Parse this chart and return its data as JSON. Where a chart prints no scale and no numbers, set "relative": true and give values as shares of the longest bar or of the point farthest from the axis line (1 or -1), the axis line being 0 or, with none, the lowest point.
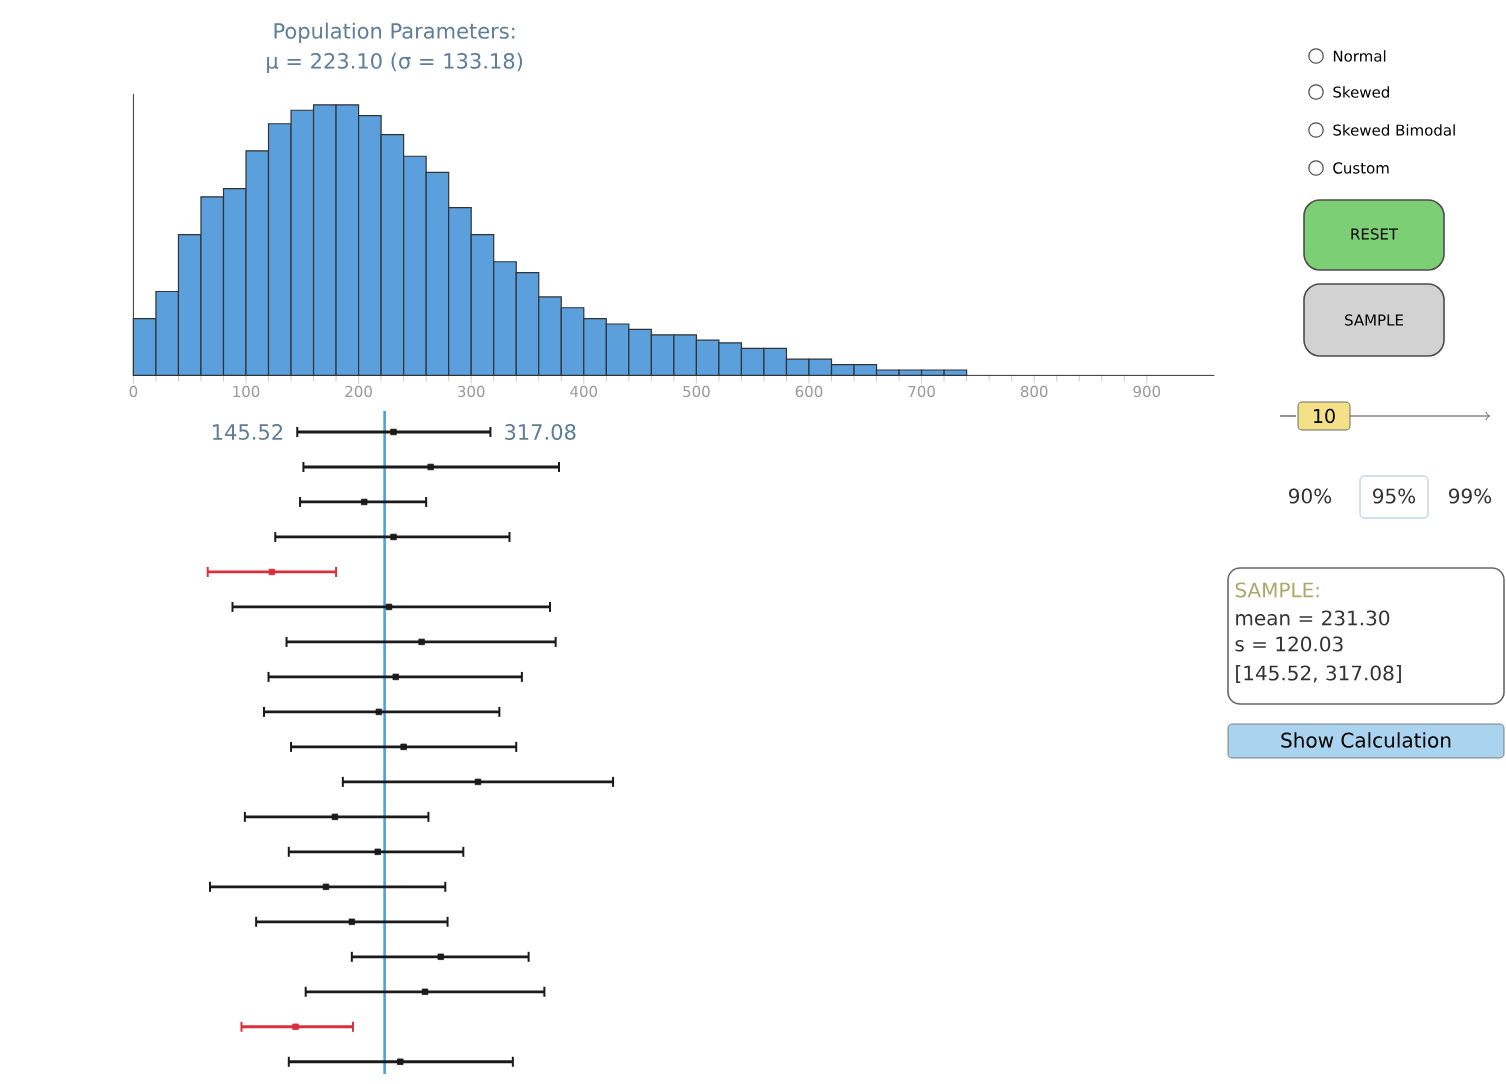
{
  "chart_data": [
    {
      "type": "bar",
      "title": "Population Parameters:",
      "subtitle": "μ = 223.10 (σ = 133.18)",
      "relative": true,
      "color": "#5b9fdc",
      "x": [
        10,
        30,
        50,
        70,
        90,
        110,
        130,
        150,
        170,
        190,
        210,
        230,
        250,
        270,
        290,
        310,
        330,
        350,
        370,
        390,
        410,
        430,
        450,
        470,
        490,
        510,
        530,
        550,
        570,
        590,
        610,
        630,
        650,
        670,
        690,
        710,
        730
      ],
      "values": [
        0.21,
        0.31,
        0.52,
        0.66,
        0.69,
        0.83,
        0.93,
        0.98,
        1,
        1,
        0.96,
        0.89,
        0.81,
        0.75,
        0.62,
        0.52,
        0.42,
        0.38,
        0.29,
        0.25,
        0.21,
        0.19,
        0.17,
        0.15,
        0.15,
        0.13,
        0.12,
        0.1,
        0.1,
        0.06,
        0.06,
        0.04,
        0.04,
        0.02,
        0.02,
        0.02,
        0.02
      ],
      "xlim": [
        0,
        960
      ],
      "xticks": [
        0,
        100,
        200,
        300,
        400,
        500,
        600,
        700,
        800,
        900
      ]
    },
    {
      "type": "scatter",
      "orientation": "horizontal",
      "marker": "square",
      "xlim": [
        0,
        900
      ],
      "xticks": [
        0,
        100,
        200,
        300,
        400,
        500,
        600,
        700,
        800,
        900
      ],
      "tick_labels": false,
      "categories": [
        null,
        null,
        null,
        null,
        null,
        null,
        null,
        null,
        null,
        null,
        null,
        null,
        null,
        null,
        null,
        null,
        null,
        null,
        null
      ],
      "values": [
        231,
        264,
        205,
        231,
        123,
        227,
        256,
        233,
        218,
        240,
        306,
        179,
        217,
        171,
        194,
        273,
        259,
        144,
        237
      ],
      "errors": [
        [
          145.52,
          317.08
        ],
        [
          151,
          378
        ],
        [
          148,
          260
        ],
        [
          126,
          334
        ],
        [
          66,
          180
        ],
        [
          88,
          370
        ],
        [
          136,
          375
        ],
        [
          120,
          345
        ],
        [
          116,
          325
        ],
        [
          140,
          340
        ],
        [
          186,
          426
        ],
        [
          99,
          262
        ],
        [
          138,
          293
        ],
        [
          68,
          277
        ],
        [
          109,
          279
        ],
        [
          194,
          351
        ],
        [
          153,
          365
        ],
        [
          96,
          195
        ],
        [
          138,
          337
        ]
      ],
      "colors": [
        "#1a1a1a",
        "#1a1a1a",
        "#1a1a1a",
        "#1a1a1a",
        "#d9303e",
        "#1a1a1a",
        "#1a1a1a",
        "#1a1a1a",
        "#1a1a1a",
        "#1a1a1a",
        "#1a1a1a",
        "#1a1a1a",
        "#1a1a1a",
        "#1a1a1a",
        "#1a1a1a",
        "#1a1a1a",
        "#1a1a1a",
        "#d9303e",
        "#1a1a1a"
      ],
      "ref_lines": [
        {
          "axis": "x",
          "value": 223.1,
          "color": "#4ca3d3"
        }
      ],
      "annotations": [
        {
          "text": "145.52",
          "x": 145.52
        },
        {
          "text": "317.08",
          "x": 317.08
        }
      ]
    },
    {
      "type": "other",
      "annotations": [
        "Normal",
        "Skewed",
        "Skewed Bimodal",
        "Custom",
        "RESET",
        "SAMPLE",
        "10",
        "90%",
        "95%",
        "99%",
        "SAMPLE:",
        "mean = 231.30",
        "s = 120.03",
        "[145.52, 317.08]",
        "Show Calculation"
      ]
    }
  ]
}
